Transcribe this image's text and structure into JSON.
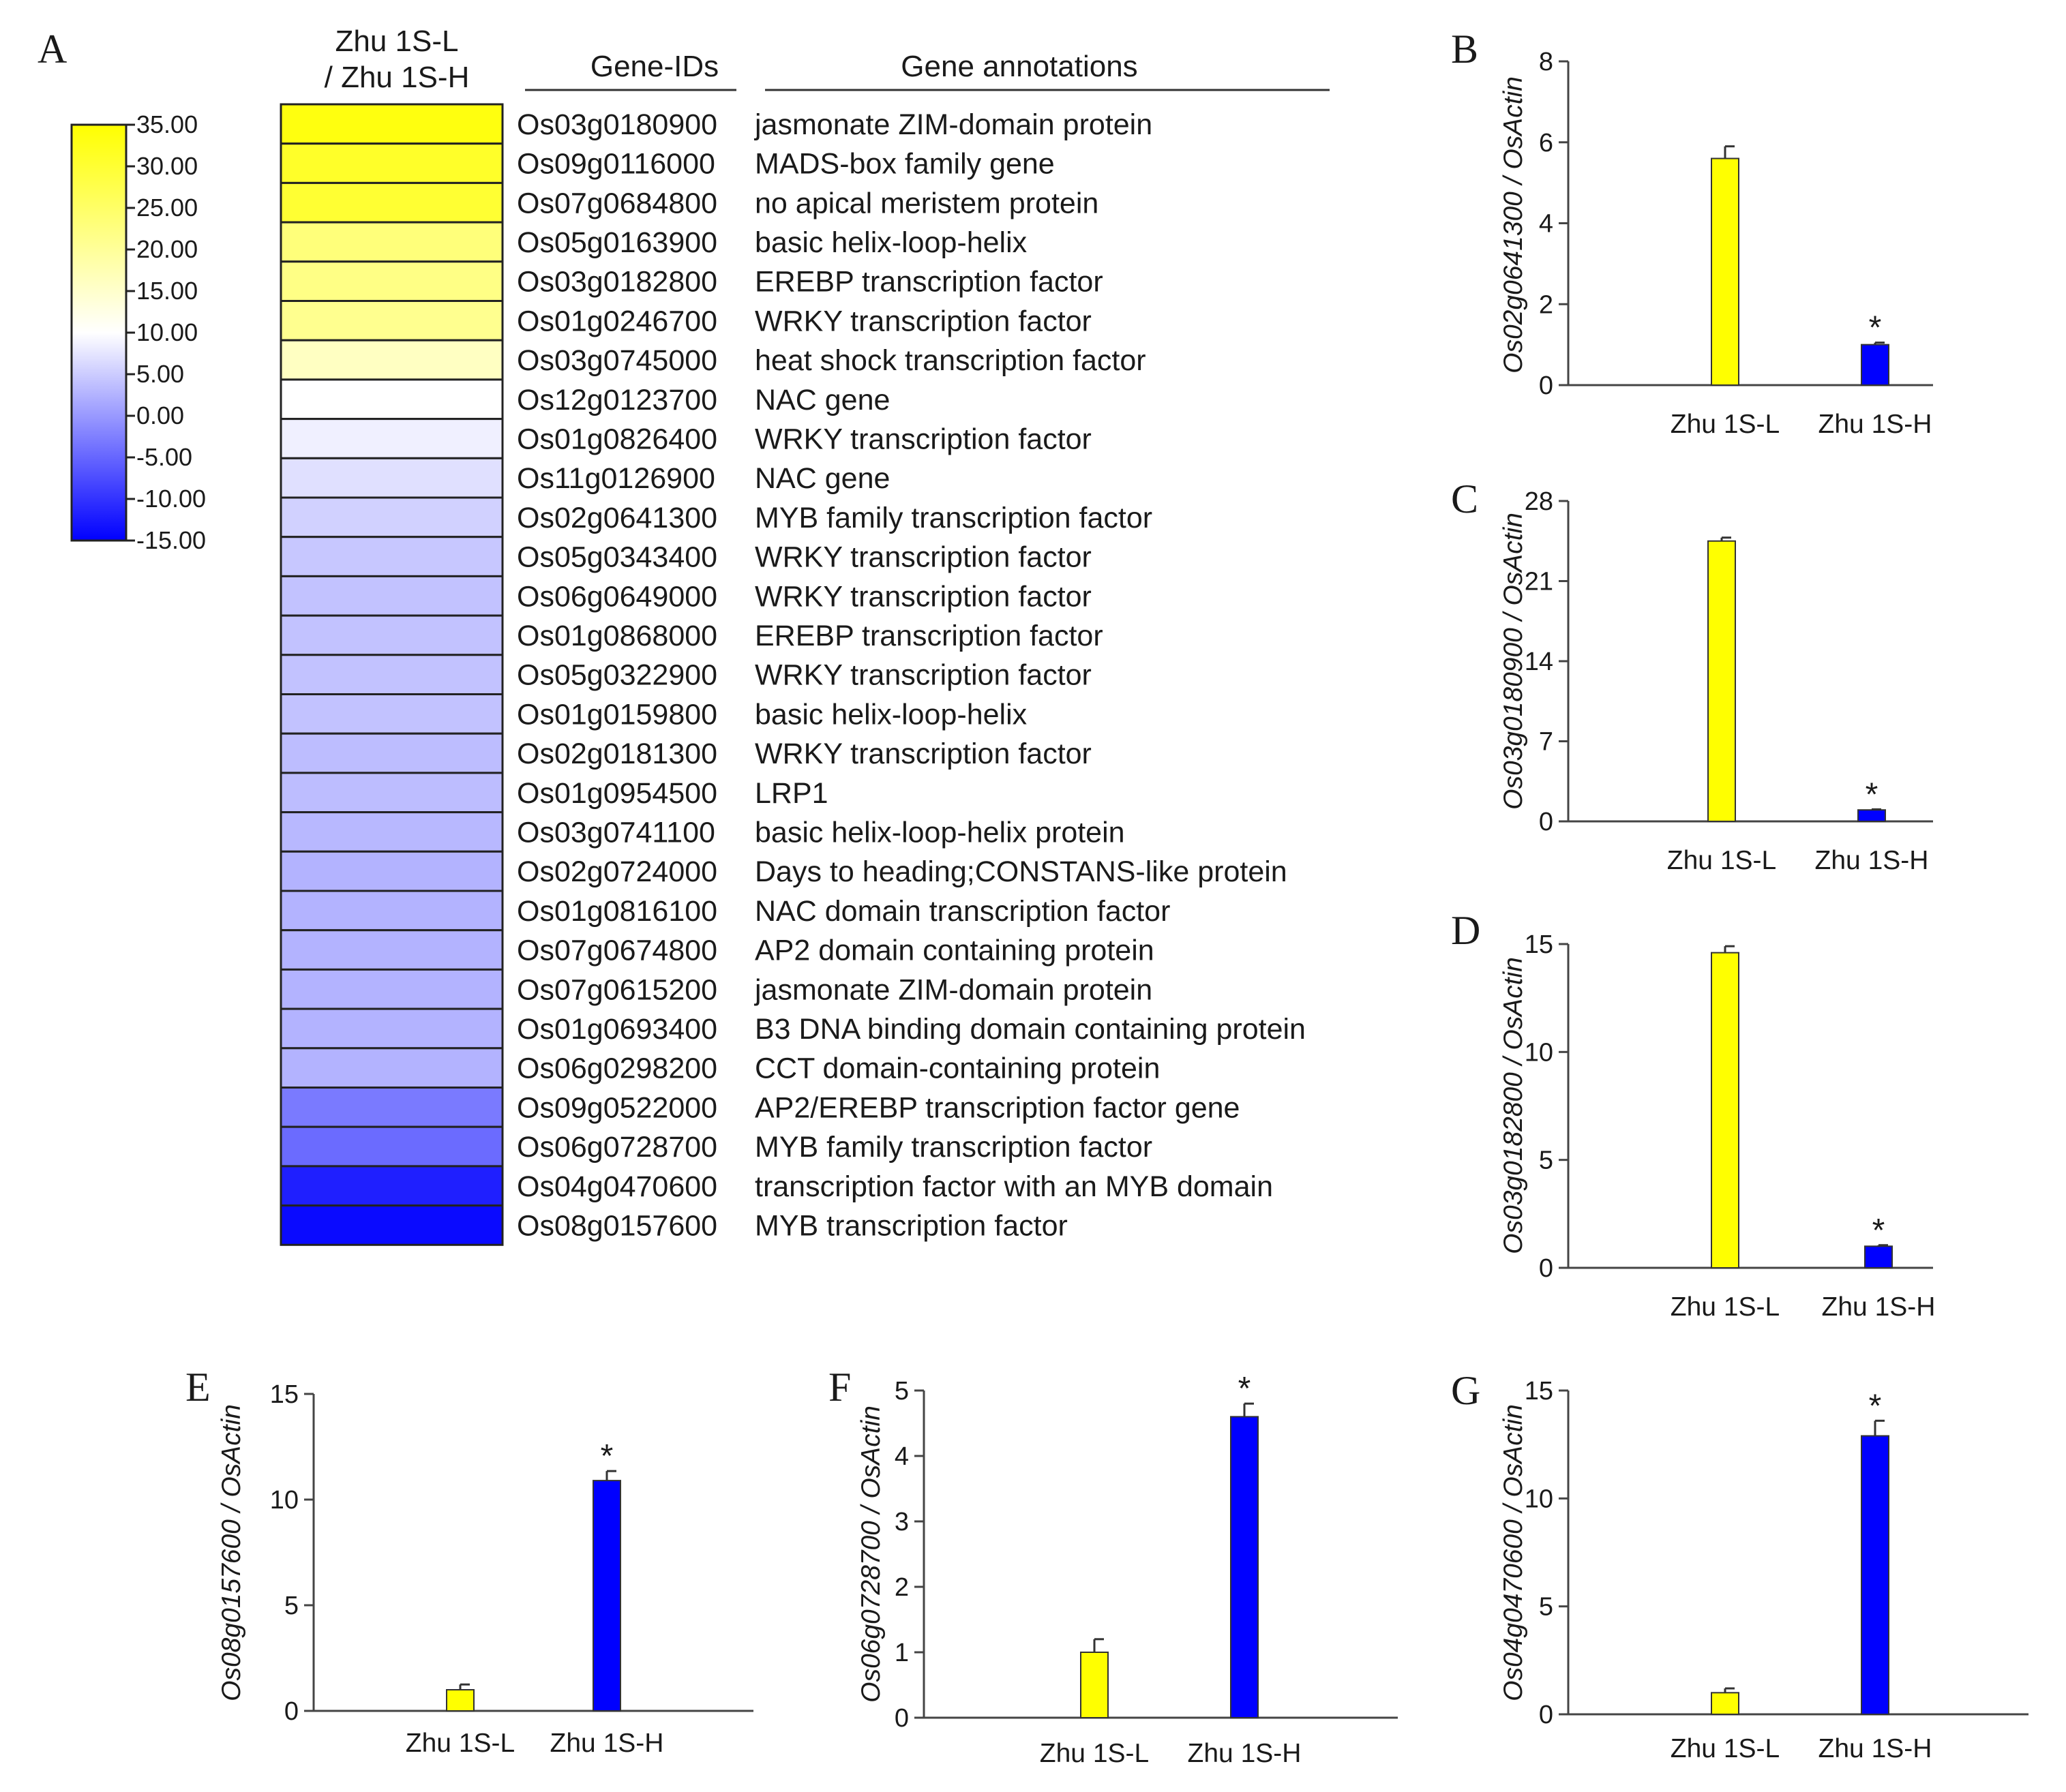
{
  "heatmap_panel": {
    "letter": "A",
    "column_header_line1": "Zhu 1S-L",
    "column_header_line2": "/ Zhu 1S-H",
    "gene_ids_header": "Gene-IDs",
    "annotations_header": "Gene annotations",
    "colorbar_ticks": [
      "35.00",
      "30.00",
      "25.00",
      "20.00",
      "15.00",
      "10.00",
      "5.00",
      "0.00",
      "-5.00",
      "-10.00",
      "-15.00"
    ],
    "colorbar_range": [
      -15,
      35
    ],
    "colors": {
      "high": "#ffff00",
      "mid": "#ffffff",
      "low": "#0000ff"
    }
  },
  "chart_data": [
    {
      "type": "heatmap",
      "panel": "A",
      "rows": [
        {
          "id": "Os03g0180900",
          "annotation": "jasmonate ZIM-domain protein",
          "value": 33.5
        },
        {
          "id": "Os09g0116000",
          "annotation": "MADS-box family gene",
          "value": 31.0
        },
        {
          "id": "Os07g0684800",
          "annotation": " no apical meristem protein",
          "value": 30.0
        },
        {
          "id": "Os05g0163900",
          "annotation": "basic helix-loop-helix",
          "value": 23.0
        },
        {
          "id": "Os03g0182800",
          "annotation": "EREBP transcription factor",
          "value": 22.0
        },
        {
          "id": "Os01g0246700",
          "annotation": "WRKY transcription factor",
          "value": 21.0
        },
        {
          "id": "Os03g0745000",
          "annotation": "heat shock transcription factor",
          "value": 16.0
        },
        {
          "id": "Os12g0123700",
          "annotation": "NAC gene",
          "value": 10.0
        },
        {
          "id": "Os01g0826400",
          "annotation": "WRKY transcription factor",
          "value": 8.5
        },
        {
          "id": "Os11g0126900",
          "annotation": "NAC gene",
          "value": 7.0
        },
        {
          "id": "Os02g0641300",
          "annotation": "MYB family transcription factor",
          "value": 5.5
        },
        {
          "id": "Os05g0343400",
          "annotation": "WRKY transcription factor",
          "value": 4.5
        },
        {
          "id": "Os06g0649000",
          "annotation": "WRKY transcription factor",
          "value": 4.0
        },
        {
          "id": "Os01g0868000",
          "annotation": "EREBP transcription factor",
          "value": 4.0
        },
        {
          "id": "Os05g0322900",
          "annotation": "WRKY transcription factor",
          "value": 4.0
        },
        {
          "id": "Os01g0159800",
          "annotation": "basic helix-loop-helix",
          "value": 4.0
        },
        {
          "id": "Os02g0181300",
          "annotation": "WRKY transcription factor",
          "value": 3.5
        },
        {
          "id": "Os01g0954500",
          "annotation": "LRP1",
          "value": 3.5
        },
        {
          "id": "Os03g0741100",
          "annotation": "basic helix-loop-helix protein",
          "value": 3.0
        },
        {
          "id": "Os02g0724000",
          "annotation": "Days to heading;CONSTANS-like protein",
          "value": 2.5
        },
        {
          "id": "Os01g0816100",
          "annotation": "NAC domain transcription factor",
          "value": 2.5
        },
        {
          "id": "Os07g0674800",
          "annotation": "AP2 domain containing protein",
          "value": 2.5
        },
        {
          "id": "Os07g0615200",
          "annotation": "jasmonate ZIM-domain protein",
          "value": 2.5
        },
        {
          "id": "Os01g0693400",
          "annotation": "B3 DNA binding domain containing protein",
          "value": 2.5
        },
        {
          "id": "Os06g0298200",
          "annotation": "CCT domain-containing protein",
          "value": 2.5
        },
        {
          "id": "Os09g0522000",
          "annotation": "AP2/EREBP transcription factor gene",
          "value": -3.0
        },
        {
          "id": "Os06g0728700",
          "annotation": "MYB family transcription factor",
          "value": -4.5
        },
        {
          "id": "Os04g0470600",
          "annotation": "transcription factor with an MYB domain",
          "value": -12.0
        },
        {
          "id": "Os08g0157600",
          "annotation": "MYB transcription factor",
          "value": -14.0
        }
      ]
    },
    {
      "type": "bar",
      "panel": "B",
      "ylabel": "Os02g0641300 / OsActin",
      "categories": [
        "Zhu 1S-L",
        "Zhu 1S-H"
      ],
      "values": [
        5.6,
        1.0
      ],
      "errors": [
        0.3,
        0.05
      ],
      "yticks": [
        "0",
        "2",
        "4",
        "6",
        "8"
      ],
      "ylim": [
        0,
        8
      ],
      "significance": [
        "",
        "*"
      ],
      "colors": [
        "#ffff00",
        "#0000ff"
      ]
    },
    {
      "type": "bar",
      "panel": "C",
      "ylabel": "Os03g0180900 / OsActin",
      "categories": [
        "Zhu 1S-L",
        "Zhu 1S-H"
      ],
      "values": [
        24.5,
        1.0
      ],
      "errors": [
        0.3,
        0.05
      ],
      "yticks": [
        "0",
        "7",
        "14",
        "21",
        "28"
      ],
      "ylim": [
        0,
        28
      ],
      "significance": [
        "",
        "*"
      ],
      "colors": [
        "#ffff00",
        "#0000ff"
      ]
    },
    {
      "type": "bar",
      "panel": "D",
      "ylabel": "Os03g0182800 / OsActin",
      "categories": [
        "Zhu 1S-L",
        "Zhu 1S-H"
      ],
      "values": [
        14.6,
        1.0
      ],
      "errors": [
        0.3,
        0.05
      ],
      "yticks": [
        "0",
        "5",
        "10",
        "15"
      ],
      "ylim": [
        0,
        15
      ],
      "significance": [
        "",
        "*"
      ],
      "colors": [
        "#ffff00",
        "#0000ff"
      ]
    },
    {
      "type": "bar",
      "panel": "E",
      "ylabel": "Os08g0157600 / OsActin",
      "categories": [
        "Zhu 1S-L",
        "Zhu 1S-H"
      ],
      "values": [
        1.0,
        10.9
      ],
      "errors": [
        0.25,
        0.45
      ],
      "yticks": [
        "0",
        "5",
        "10",
        "15"
      ],
      "ylim": [
        0,
        15
      ],
      "significance": [
        "",
        "*"
      ],
      "colors": [
        "#ffff00",
        "#0000ff"
      ]
    },
    {
      "type": "bar",
      "panel": "F",
      "ylabel": "Os06g0728700 / OsActin",
      "categories": [
        "Zhu 1S-L",
        "Zhu 1S-H"
      ],
      "values": [
        1.0,
        4.6
      ],
      "errors": [
        0.2,
        0.2
      ],
      "yticks": [
        "0",
        "1",
        "2",
        "3",
        "4",
        "5"
      ],
      "ylim": [
        0,
        5
      ],
      "significance": [
        "",
        "*"
      ],
      "colors": [
        "#ffff00",
        "#0000ff"
      ]
    },
    {
      "type": "bar",
      "panel": "G",
      "ylabel": "Os04g0470600 / OsActin",
      "categories": [
        "Zhu 1S-L",
        "Zhu 1S-H"
      ],
      "values": [
        1.0,
        12.9
      ],
      "errors": [
        0.2,
        0.7
      ],
      "yticks": [
        "0",
        "5",
        "10",
        "15"
      ],
      "ylim": [
        0,
        15
      ],
      "significance": [
        "",
        "*"
      ],
      "colors": [
        "#ffff00",
        "#0000ff"
      ]
    }
  ]
}
